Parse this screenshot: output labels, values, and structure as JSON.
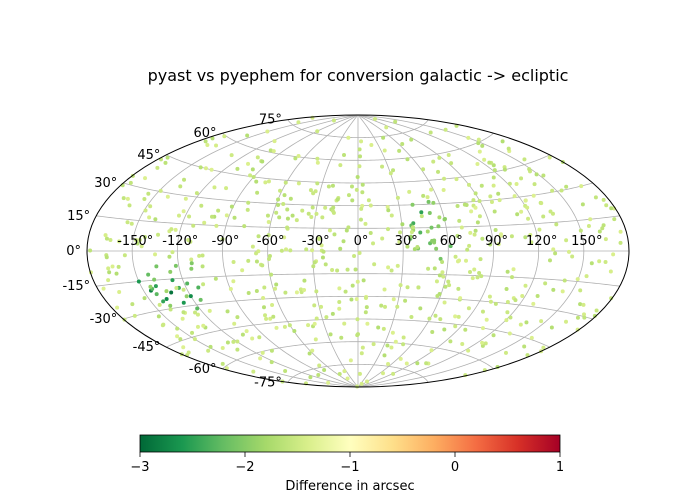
{
  "chart_data": {
    "type": "scatter",
    "projection": "aitoff",
    "title": "pyast vs pyephem for conversion galactic -> ecliptic",
    "lon_ticks": [
      "-150°",
      "-120°",
      "-90°",
      "-60°",
      "-30°",
      "0°",
      "30°",
      "60°",
      "90°",
      "120°",
      "150°"
    ],
    "lat_ticks": [
      "75°",
      "60°",
      "45°",
      "30°",
      "15°",
      "0°",
      "-15°",
      "-30°",
      "-45°",
      "-60°",
      "-75°"
    ],
    "grid": true,
    "colormap": "RdYlGn_r",
    "colorbar": {
      "label": "Difference in arcsec",
      "range": [
        -3,
        1
      ],
      "ticks": [
        "−3",
        "−2",
        "−1",
        "0",
        "1"
      ],
      "colors": [
        "#006837",
        "#1a9850",
        "#66bd63",
        "#a6d96a",
        "#d9ef8b",
        "#ffffbf",
        "#fee08b",
        "#fdae61",
        "#f46d43",
        "#d73027",
        "#a50026"
      ]
    },
    "points": [
      {
        "lon": -150,
        "lat": -15,
        "diff": -2.6
      },
      {
        "lon": -145,
        "lat": -20,
        "diff": -2.8
      },
      {
        "lon": -140,
        "lat": -18,
        "diff": -2.5
      },
      {
        "lon": -138,
        "lat": -25,
        "diff": -2.7
      },
      {
        "lon": -132,
        "lat": -22,
        "diff": -2.9
      },
      {
        "lon": -128,
        "lat": -28,
        "diff": -2.6
      },
      {
        "lon": -125,
        "lat": -20,
        "diff": -2.4
      },
      {
        "lon": -120,
        "lat": -25,
        "diff": -2.7
      },
      {
        "lon": -118,
        "lat": -18,
        "diff": -2.3
      },
      {
        "lon": -142,
        "lat": -12,
        "diff": -2.2
      },
      {
        "lon": -135,
        "lat": -8,
        "diff": -2.1
      },
      {
        "lon": -112,
        "lat": -10,
        "diff": -2.0
      },
      {
        "lon": 38,
        "lat": 18,
        "diff": -2.4
      },
      {
        "lon": 42,
        "lat": 12,
        "diff": -2.3
      },
      {
        "lon": 45,
        "lat": 25,
        "diff": -2.5
      },
      {
        "lon": 48,
        "lat": 5,
        "diff": -2.2
      },
      {
        "lon": 50,
        "lat": 15,
        "diff": -2.1
      },
      {
        "lon": 35,
        "lat": 8,
        "diff": -2.2
      },
      {
        "lon": 55,
        "lat": -5,
        "diff": -2.1
      },
      {
        "lon": 40,
        "lat": 30,
        "diff": -2.0
      },
      {
        "lon": 60,
        "lat": 20,
        "diff": -1.9
      },
      {
        "lon": -100,
        "lat": 20,
        "diff": -1.7
      },
      {
        "lon": -90,
        "lat": 45,
        "diff": -1.6
      },
      {
        "lon": -75,
        "lat": -40,
        "diff": -1.5
      },
      {
        "lon": -60,
        "lat": 10,
        "diff": -1.6
      },
      {
        "lon": -45,
        "lat": 60,
        "diff": -1.5
      },
      {
        "lon": -30,
        "lat": -10,
        "diff": -1.6
      },
      {
        "lon": -15,
        "lat": 35,
        "diff": -1.5
      },
      {
        "lon": 0,
        "lat": -55,
        "diff": -1.6
      },
      {
        "lon": 10,
        "lat": 5,
        "diff": -1.5
      },
      {
        "lon": 20,
        "lat": 70,
        "diff": -1.4
      },
      {
        "lon": 75,
        "lat": -30,
        "diff": -1.6
      },
      {
        "lon": 90,
        "lat": 40,
        "diff": -1.5
      },
      {
        "lon": 105,
        "lat": -15,
        "diff": -1.6
      },
      {
        "lon": 120,
        "lat": 25,
        "diff": -1.5
      },
      {
        "lon": 135,
        "lat": -45,
        "diff": -1.4
      },
      {
        "lon": 150,
        "lat": 10,
        "diff": -1.6
      },
      {
        "lon": 165,
        "lat": -5,
        "diff": -1.5
      },
      {
        "lon": -165,
        "lat": 5,
        "diff": -1.5
      },
      {
        "lon": 170,
        "lat": 30,
        "diff": -1.4
      },
      {
        "lon": -170,
        "lat": -30,
        "diff": -1.5
      }
    ],
    "scatter_seed": 7,
    "scatter_count": 640
  }
}
